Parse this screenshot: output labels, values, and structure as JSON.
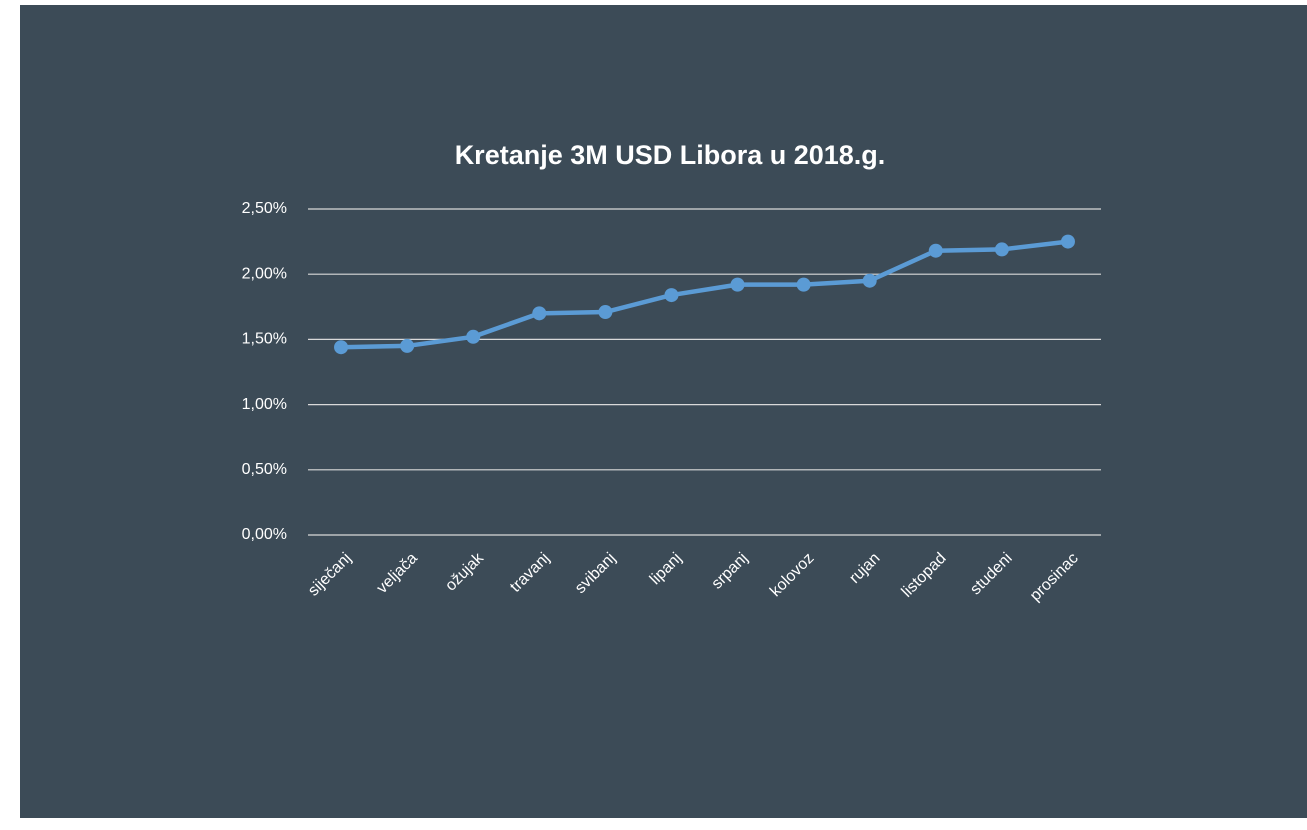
{
  "chart_data": {
    "type": "line",
    "title": "Kretanje 3M USD Libora u 2018.g.",
    "categories": [
      "siječanj",
      "veljača",
      "ožujak",
      "travanj",
      "svibanj",
      "lipanj",
      "srpanj",
      "kolovoz",
      "rujan",
      "listopad",
      "studeni",
      "prosinac"
    ],
    "series": [
      {
        "name": "3M USD Libor",
        "color": "#5b9bd5",
        "values": [
          1.44,
          1.45,
          1.52,
          1.7,
          1.71,
          1.84,
          1.92,
          1.92,
          1.95,
          2.18,
          2.19,
          2.25
        ]
      }
    ],
    "ylim": [
      0,
      2.5
    ],
    "yticks": [
      {
        "value": 0,
        "label": "0,00%"
      },
      {
        "value": 0.5,
        "label": "0,50%"
      },
      {
        "value": 1,
        "label": "1,00%"
      },
      {
        "value": 1.5,
        "label": "1,50%"
      },
      {
        "value": 2,
        "label": "2,00%"
      },
      {
        "value": 2.5,
        "label": "2,50%"
      }
    ],
    "grid": true
  }
}
